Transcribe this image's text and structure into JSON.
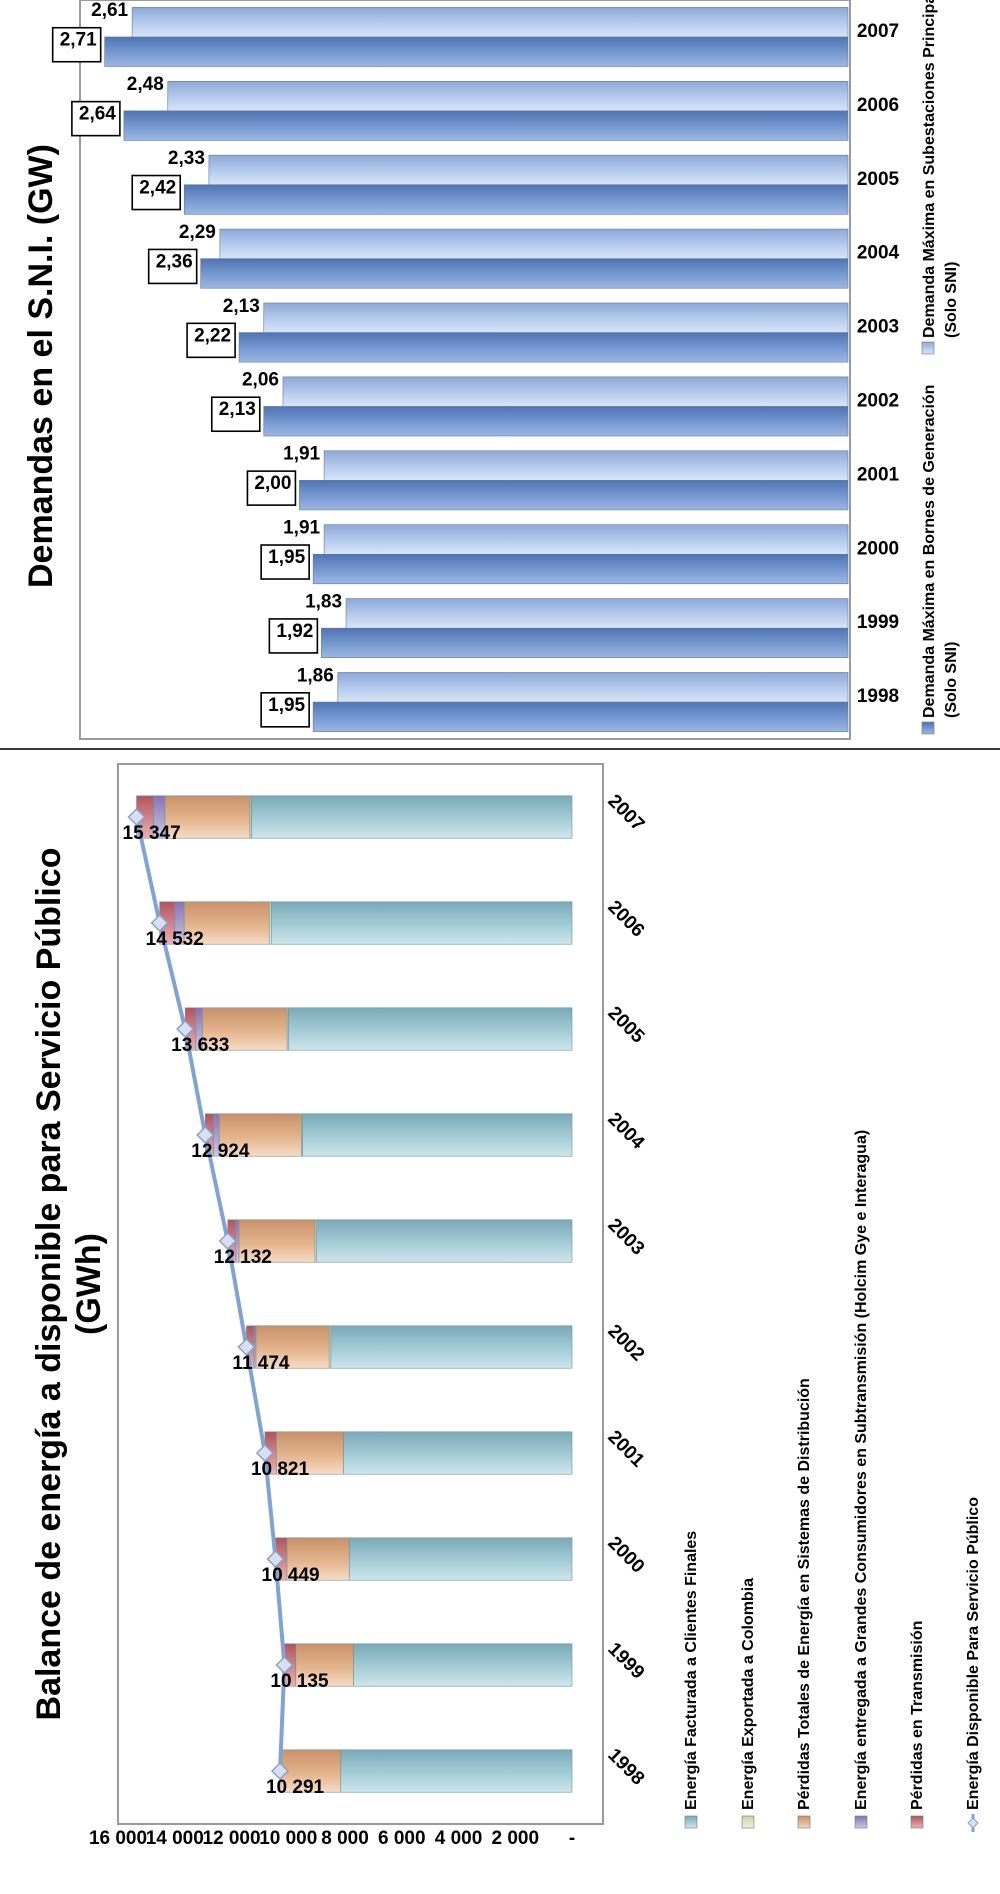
{
  "chart_data": [
    {
      "type": "bar",
      "stacked": true,
      "title": "Balance de energía a disponible para Servicio Público",
      "title_line2": "(GWh)",
      "categories": [
        "1998",
        "1999",
        "2000",
        "2001",
        "2002",
        "2003",
        "2004",
        "2005",
        "2006",
        "2007"
      ],
      "ylim": [
        0,
        16000
      ],
      "y_ticks": [
        "-",
        "2 000",
        "4 000",
        "6 000",
        "8 000",
        "10 000",
        "12 000",
        "14 000",
        "16 000"
      ],
      "grid": false,
      "legend_position": "bottom",
      "series": [
        {
          "name": "Energía Facturada a Clientes Finales",
          "color": "#8fbfcc",
          "values": [
            8150,
            7700,
            7850,
            8050,
            8500,
            9000,
            9500,
            10000,
            10600,
            11300
          ]
        },
        {
          "name": "Energía Exportada a Colombia",
          "color": "#d3ddb6",
          "values": [
            0,
            0,
            0,
            0,
            60,
            60,
            40,
            40,
            70,
            50
          ]
        },
        {
          "name": "Pérdidas Totales de Energía en Sistemas de Distribución",
          "color": "#e2b38d",
          "values": [
            2141,
            2035,
            2199,
            2371,
            2580,
            2680,
            2900,
            2990,
            3000,
            3000
          ]
        },
        {
          "name": "Energía entregada a Grandes Consumidores en Subtransmisión (Holcim Gye e Interagua)",
          "color": "#9c8fc5",
          "values": [
            0,
            0,
            0,
            0,
            70,
            110,
            200,
            230,
            330,
            400
          ]
        },
        {
          "name": "Pérdidas en Transmisión",
          "color": "#c86c72",
          "values": [
            0,
            400,
            400,
            400,
            264,
            282,
            284,
            373,
            532,
            597
          ]
        }
      ],
      "line_series": {
        "name": "Energía Disponible Para Servicio Público",
        "color": "#7fa3d6",
        "values": [
          10291,
          10135,
          10449,
          10821,
          11474,
          12132,
          12924,
          13633,
          14532,
          15347
        ]
      },
      "data_labels": [
        "10 291",
        "10 135",
        "10 449",
        "10 821",
        "11 474",
        "12 132",
        "12 924",
        "13 633",
        "14 532",
        "15 347"
      ]
    },
    {
      "type": "bar",
      "title": "Demandas en el S.N.I. (GW)",
      "categories": [
        "1998",
        "1999",
        "2000",
        "2001",
        "2002",
        "2003",
        "2004",
        "2005",
        "2006",
        "2007"
      ],
      "ylim": [
        0,
        2.8
      ],
      "grid": false,
      "legend_position": "bottom",
      "series": [
        {
          "name": "Demanda Máxima en Bornes de Generación",
          "name_line2": "(Solo SNI)",
          "color": "#6e92cc",
          "values": [
            1.95,
            1.92,
            1.95,
            2.0,
            2.13,
            2.22,
            2.36,
            2.42,
            2.64,
            2.71
          ],
          "labels": [
            "1,95",
            "1,92",
            "1,95",
            "2,00",
            "2,13",
            "2,22",
            "2,36",
            "2,42",
            "2,64",
            "2,71"
          ]
        },
        {
          "name": "Demanda Máxima en Subestaciones Principales",
          "name_line2": "(Solo SNI)",
          "color": "#a9bfe6",
          "values": [
            1.86,
            1.83,
            1.91,
            1.91,
            2.06,
            2.13,
            2.29,
            2.33,
            2.48,
            2.61
          ],
          "labels": [
            "1,86",
            "1,83",
            "1,91",
            "1,91",
            "2,06",
            "2,13",
            "2,29",
            "2,33",
            "2,48",
            "2,61"
          ]
        }
      ]
    }
  ]
}
